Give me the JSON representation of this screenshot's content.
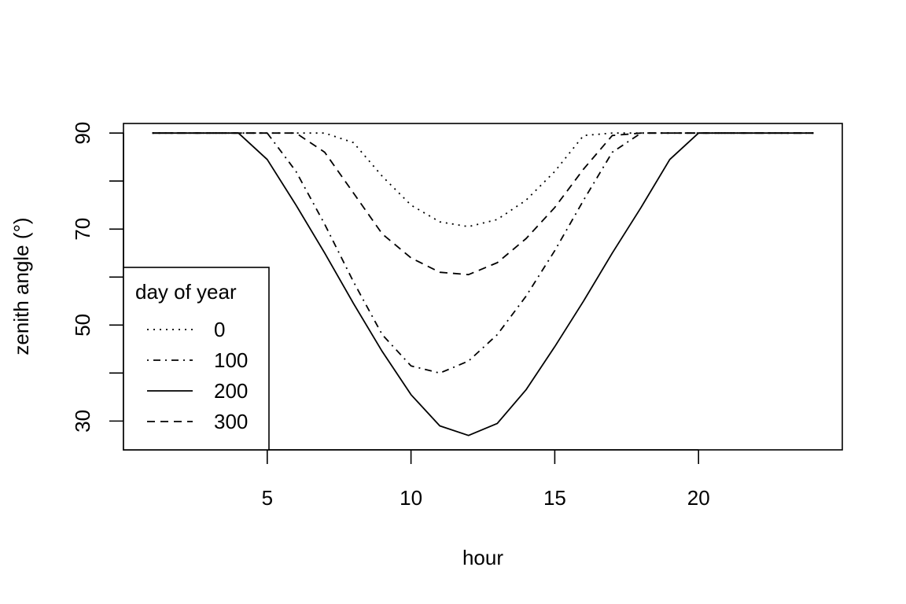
{
  "chart_data": {
    "type": "line",
    "title": "",
    "xlabel": "hour",
    "ylabel": "zenith angle (°)",
    "xlim": [
      0,
      25
    ],
    "ylim": [
      24,
      92
    ],
    "xticks": [
      5,
      10,
      15,
      20
    ],
    "yticks": [
      30,
      50,
      70,
      90
    ],
    "yminor_ticks": [
      40,
      60,
      80
    ],
    "grid": false,
    "legend": {
      "title": "day of year",
      "position": "bottom-left"
    },
    "x": [
      1,
      2,
      3,
      4,
      5,
      6,
      7,
      8,
      9,
      10,
      11,
      12,
      13,
      14,
      15,
      16,
      17,
      18,
      19,
      20,
      21,
      22,
      23,
      24
    ],
    "series": [
      {
        "name": "0",
        "dash": "dotted",
        "values": [
          90,
          90,
          90,
          90,
          90,
          90,
          90,
          88,
          81,
          75,
          71.5,
          70.5,
          72,
          76,
          82,
          89.5,
          90,
          90,
          90,
          90,
          90,
          90,
          90,
          90
        ]
      },
      {
        "name": "100",
        "dash": "dotdash",
        "values": [
          90,
          90,
          90,
          90,
          90,
          82,
          71,
          59,
          48,
          41.5,
          40,
          42.5,
          48,
          56,
          65.5,
          76,
          86,
          90,
          90,
          90,
          90,
          90,
          90,
          90
        ]
      },
      {
        "name": "200",
        "dash": "solid",
        "values": [
          90,
          90,
          90,
          90,
          84.5,
          75,
          65,
          54.5,
          44.5,
          35.5,
          29,
          27,
          29.5,
          36.5,
          45.5,
          55,
          65,
          74.5,
          84.5,
          90,
          90,
          90,
          90,
          90
        ]
      },
      {
        "name": "300",
        "dash": "dashed",
        "values": [
          90,
          90,
          90,
          90,
          90,
          90,
          86,
          77.5,
          69,
          64,
          61,
          60.5,
          63,
          68,
          74.5,
          82.5,
          89.5,
          90,
          90,
          90,
          90,
          90,
          90,
          90
        ]
      }
    ]
  }
}
